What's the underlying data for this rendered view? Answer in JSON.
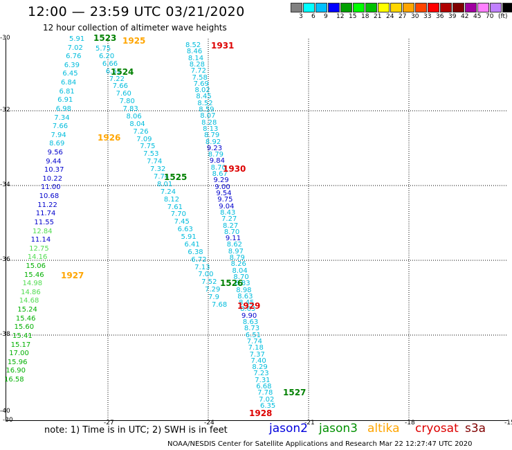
{
  "header": {
    "title": "12:00 — 23:59 UTC 03/21/2020",
    "subtitle": "12 hour collection of altimeter wave heights"
  },
  "scale": {
    "colors": [
      "#808080",
      "#00ffff",
      "#00bfff",
      "#0000ff",
      "#00a000",
      "#00ff00",
      "#00c000",
      "#ffff00",
      "#ffd700",
      "#ffa500",
      "#ff4500",
      "#ff0000",
      "#b00000",
      "#800000",
      "#a000a0",
      "#ff80ff",
      "#c080ff",
      "#000000"
    ],
    "labels": [
      "3",
      "6",
      "9",
      "12",
      "15",
      "18",
      "21",
      "24",
      "27",
      "30",
      "33",
      "36",
      "39",
      "42",
      "45",
      "70",
      "(ft)"
    ]
  },
  "axes": {
    "lat_labels": [
      "-30",
      "-32",
      "-34",
      "-36",
      "-38",
      "-40"
    ],
    "lon_labels": [
      "-30",
      "-27",
      "-24",
      "-21",
      "-18",
      "-15"
    ]
  },
  "passes": [
    {
      "text": "1523",
      "color": "#008000"
    },
    {
      "text": "1925",
      "color": "#ffa500"
    },
    {
      "text": "1931",
      "color": "#dd0000"
    },
    {
      "text": "1524",
      "color": "#008000"
    },
    {
      "text": "1926",
      "color": "#ffa500"
    },
    {
      "text": "1930",
      "color": "#dd0000"
    },
    {
      "text": "1525",
      "color": "#008000"
    },
    {
      "text": "1927",
      "color": "#ffa500"
    },
    {
      "text": "1526",
      "color": "#008000"
    },
    {
      "text": "1929",
      "color": "#dd0000"
    },
    {
      "text": "1527",
      "color": "#008000"
    },
    {
      "text": "1928",
      "color": "#dd0000"
    }
  ],
  "track_a": [
    "5.91",
    "7.02",
    "6.76",
    "6.39",
    "6.45",
    "6.84",
    "6.81",
    "6.91",
    "6.98",
    "7.34",
    "7.66",
    "7.94",
    "8.69",
    "9.56",
    "9.44",
    "10.37",
    "10.22",
    "11.00",
    "10.68",
    "11.22",
    "11.74",
    "11.55",
    "12.84",
    "11.14",
    "12.75",
    "14.16",
    "15.06",
    "15.46",
    "14.98",
    "14.86",
    "14.68",
    "15.24",
    "15.46",
    "15.60",
    "15.41",
    "15.17",
    "17.00",
    "15.96",
    "16.90",
    "16.58"
  ],
  "track_b": [
    "5.75",
    "6.20",
    "6.66",
    "6.51",
    "7.22",
    "7.66",
    "7.60",
    "7.80",
    "7.83",
    "8.06",
    "8.04",
    "7.26",
    "7.09",
    "7.75",
    "7.53",
    "7.74",
    "7.32",
    "7.74",
    "8.01",
    "7.24",
    "8.12",
    "7.61",
    "7.70",
    "7.45",
    "6.63",
    "5.91",
    "6.41",
    "6.38",
    "6.72",
    "7.13",
    "7.00",
    "7.52",
    "7.29",
    "7.9",
    "7.68"
  ],
  "track_c": [
    "8.52",
    "8.46",
    "8.14",
    "8.28",
    "7.72",
    "7.58",
    "7.69",
    "8.02",
    "8.45",
    "8.52",
    "8.59",
    "8.07",
    "8.28",
    "8.13",
    "8.79",
    "8.92",
    "9.23",
    "8.79",
    "9.84",
    "8.70",
    "8.67",
    "9.29",
    "9.00",
    "9.54",
    "9.75",
    "9.04",
    "8.43",
    "7.27",
    "8.27",
    "8.70",
    "9.11",
    "8.62",
    "8.97",
    "8.79",
    "8.26",
    "8.04",
    "8.70",
    "8.83",
    "8.98",
    "8.63",
    "8.45",
    "8.63",
    "9.90",
    "8.63",
    "8.73",
    "6.51",
    "7.74",
    "7.18",
    "7.37",
    "7.40",
    "8.29",
    "7.23",
    "7.31",
    "6.68",
    "7.78",
    "7.02",
    "6.35"
  ],
  "note": "note:  1) Time is in UTC; 2) SWH is in feet",
  "legend": [
    {
      "label": "jason2",
      "color": "#0000dd"
    },
    {
      "label": "jason3",
      "color": "#009000"
    },
    {
      "label": "altika",
      "color": "#ffa500"
    },
    {
      "label": "cryosat",
      "color": "#dd0000"
    },
    {
      "label": "s3a",
      "color": "#800000"
    }
  ],
  "credit": "NOAA/NESDIS Center for Satellite Applications and Research    Mar 22 12:27:47 UTC 2020"
}
